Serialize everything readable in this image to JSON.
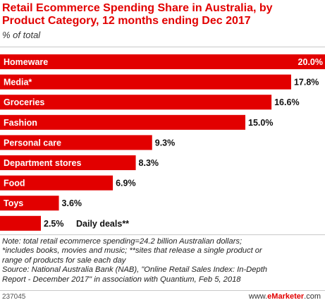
{
  "header": {
    "title_line1": "Retail Ecommerce Spending Share in Australia, by",
    "title_line2": "Product Category, 12 months ending Dec 2017",
    "subtitle": "% of total"
  },
  "notes": [
    "Note: total retail ecommerce spending=24.2 billion Australian dollars;",
    "*includes books, movies and music; **sites that release a single product or",
    "range of products for sale each day",
    "Source: National Australia Bank (NAB), \"Online Retail Sales Index: In-Depth",
    "Report - December 2017\" in association with Quantium, Feb 5, 2018"
  ],
  "footer": {
    "id": "237045",
    "brand_prefix": "www.",
    "brand_name": "eMarketer",
    "brand_suffix": ".com"
  },
  "colors": {
    "bar": "#e20000",
    "title": "#e20000"
  },
  "chart_data": {
    "type": "bar",
    "orientation": "horizontal",
    "categories": [
      "Homeware",
      "Media*",
      "Groceries",
      "Fashion",
      "Personal care",
      "Department stores",
      "Food",
      "Toys",
      "Daily deals**"
    ],
    "values": [
      20.0,
      17.8,
      16.6,
      15.0,
      9.3,
      8.3,
      6.9,
      3.6,
      2.5
    ],
    "value_labels": [
      "20.0%",
      "17.8%",
      "16.6%",
      "15.0%",
      "9.3%",
      "8.3%",
      "6.9%",
      "3.6%",
      "2.5%"
    ],
    "xlim": [
      0,
      20.0
    ],
    "grid": false,
    "legend": "none"
  }
}
